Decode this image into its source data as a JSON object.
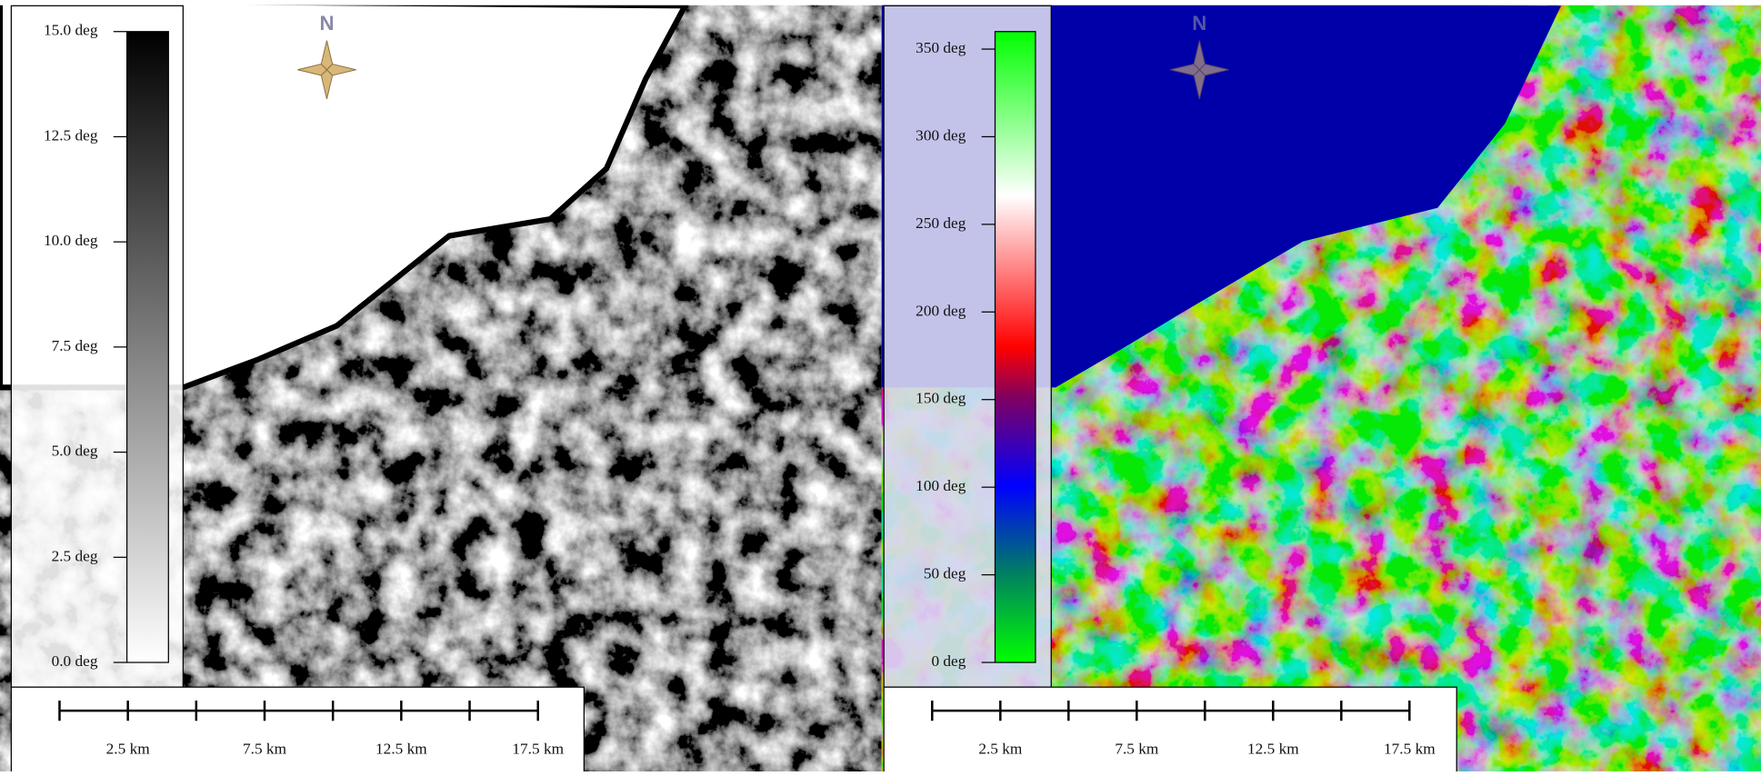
{
  "panels": [
    {
      "north": "N",
      "legend": {
        "lim": [
          0,
          15
        ],
        "ticks": [
          {
            "value": 0,
            "label": "0.0 deg"
          },
          {
            "value": 2.5,
            "label": "2.5 deg"
          },
          {
            "value": 5,
            "label": "5.0 deg"
          },
          {
            "value": 7.5,
            "label": "7.5 deg"
          },
          {
            "value": 10,
            "label": "10.0 deg"
          },
          {
            "value": 12.5,
            "label": "12.5 deg"
          },
          {
            "value": 15,
            "label": "15.0 deg"
          }
        ]
      },
      "scale_bar": {
        "lim": [
          0,
          17.5
        ],
        "minor_ticks": [
          0,
          5,
          10,
          15
        ],
        "ticks": [
          {
            "value": 2.5,
            "label": "2.5 km"
          },
          {
            "value": 7.5,
            "label": "7.5 km"
          },
          {
            "value": 12.5,
            "label": "12.5 km"
          },
          {
            "value": 17.5,
            "label": "17.5 km"
          }
        ]
      }
    },
    {
      "north": "N",
      "legend": {
        "lim": [
          0,
          360
        ],
        "ticks": [
          {
            "value": 0,
            "label": "0 deg"
          },
          {
            "value": 50,
            "label": "50 deg"
          },
          {
            "value": 100,
            "label": "100 deg"
          },
          {
            "value": 150,
            "label": "150 deg"
          },
          {
            "value": 200,
            "label": "200 deg"
          },
          {
            "value": 250,
            "label": "250 deg"
          },
          {
            "value": 300,
            "label": "300 deg"
          },
          {
            "value": 350,
            "label": "350 deg"
          }
        ]
      },
      "scale_bar": {
        "lim": [
          0,
          17.5
        ],
        "minor_ticks": [
          0,
          5,
          10,
          15
        ],
        "ticks": [
          {
            "value": 2.5,
            "label": "2.5 km"
          },
          {
            "value": 7.5,
            "label": "7.5 km"
          },
          {
            "value": 12.5,
            "label": "12.5 km"
          },
          {
            "value": 17.5,
            "label": "17.5 km"
          }
        ]
      }
    }
  ]
}
